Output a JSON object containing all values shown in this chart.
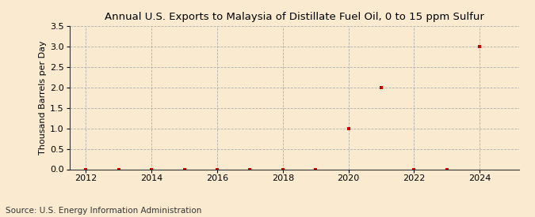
{
  "title": "Annual U.S. Exports to Malaysia of Distillate Fuel Oil, 0 to 15 ppm Sulfur",
  "ylabel": "Thousand Barrels per Day",
  "source": "Source: U.S. Energy Information Administration",
  "background_color": "#faebd0",
  "years": [
    2012,
    2013,
    2014,
    2015,
    2016,
    2017,
    2018,
    2019,
    2020,
    2021,
    2022,
    2023,
    2024
  ],
  "values": [
    0.0,
    0.0,
    0.0,
    0.0,
    0.0,
    0.0,
    0.0,
    0.0,
    1.0,
    2.0,
    0.0,
    0.0,
    3.0
  ],
  "marker_color": "#cc0000",
  "marker_size": 3.5,
  "xlim": [
    2011.5,
    2025.2
  ],
  "ylim": [
    0.0,
    3.5
  ],
  "yticks": [
    0.0,
    0.5,
    1.0,
    1.5,
    2.0,
    2.5,
    3.0,
    3.5
  ],
  "xticks": [
    2012,
    2014,
    2016,
    2018,
    2020,
    2022,
    2024
  ],
  "grid_color": "#aaaaaa",
  "grid_style": "--",
  "title_fontsize": 9.5,
  "label_fontsize": 8,
  "tick_fontsize": 8,
  "source_fontsize": 7.5
}
